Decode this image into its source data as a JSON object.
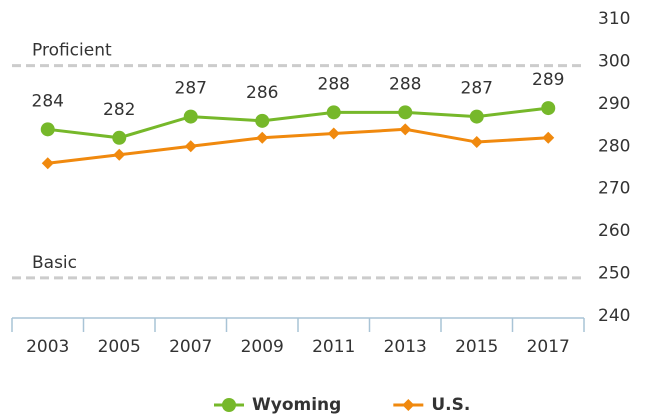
{
  "chart_data": {
    "type": "line",
    "categories": [
      "2003",
      "2005",
      "2007",
      "2009",
      "2011",
      "2013",
      "2015",
      "2017"
    ],
    "series": [
      {
        "name": "Wyoming",
        "color": "#76b82a",
        "marker": "circle",
        "values": [
          284,
          282,
          287,
          286,
          288,
          288,
          287,
          289
        ]
      },
      {
        "name": "U.S.",
        "color": "#f0890e",
        "marker": "diamond",
        "values": [
          276,
          278,
          280,
          282,
          283,
          284,
          281,
          282
        ]
      }
    ],
    "reference_lines": [
      {
        "label": "Proficient",
        "value": 299
      },
      {
        "label": "Basic",
        "value": 249
      }
    ],
    "ylim": [
      240,
      310
    ],
    "yticks": [
      240,
      250,
      260,
      270,
      280,
      290,
      300,
      310
    ],
    "y_axis_side": "right",
    "grid": false,
    "legend": "bottom"
  }
}
